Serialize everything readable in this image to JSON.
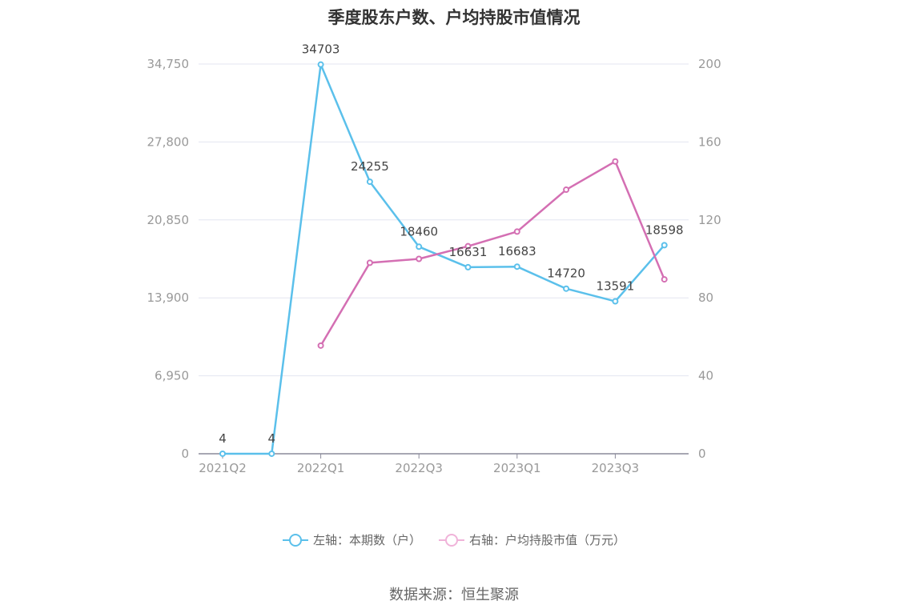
{
  "chart_data": {
    "type": "line",
    "title": "季度股东户数、户均持股市值情况",
    "categories": [
      "2021Q2",
      "2021Q3",
      "2022Q1",
      "2022Q2",
      "2022Q3",
      "2022Q4",
      "2023Q1",
      "2023Q2",
      "2023Q3",
      "2023Q4"
    ],
    "x_tick_labels": [
      "2021Q2",
      "2022Q1",
      "2022Q3",
      "2023Q1",
      "2023Q3"
    ],
    "left_axis": {
      "ylim": [
        0,
        34750
      ],
      "ticks": [
        0,
        6950,
        13900,
        20850,
        27800,
        34750
      ],
      "tick_labels": [
        "0",
        "6,950",
        "13,900",
        "20,850",
        "27,800",
        "34,750"
      ]
    },
    "right_axis": {
      "ylim": [
        0,
        200
      ],
      "ticks": [
        0,
        40,
        80,
        120,
        160,
        200
      ],
      "tick_labels": [
        "0",
        "40",
        "80",
        "120",
        "160",
        "200"
      ]
    },
    "series": [
      {
        "name": "左轴：本期数（户）",
        "axis": "left",
        "color": "#5bc0eb",
        "values": [
          4,
          4,
          34703,
          24255,
          18460,
          16631,
          16683,
          14720,
          13591,
          18598
        ],
        "labels": [
          "4",
          "4",
          "34703",
          "24255",
          "18460",
          "16631",
          "16683",
          "14720",
          "13591",
          "18598"
        ]
      },
      {
        "name": "右轴：户均持股市值（万元）",
        "axis": "right",
        "color": "#d46fb3",
        "values": [
          null,
          null,
          55.5,
          98,
          100,
          106.5,
          114,
          135.5,
          150,
          89.5
        ]
      }
    ],
    "grid": true,
    "legend_position": "bottom"
  },
  "source": "数据来源：恒生聚源"
}
